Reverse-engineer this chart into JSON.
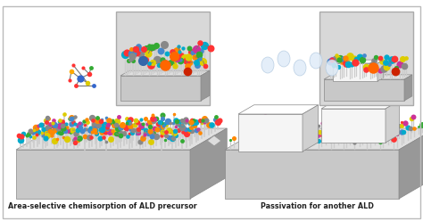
{
  "label_left": "Area-selective chemisorption of ALD precursor",
  "label_right": "Passivation for another ALD",
  "bg_color": "#ffffff",
  "border_color": "#bbbbbb",
  "fig_width": 4.74,
  "fig_height": 2.48,
  "dpi": 100,
  "label_fontsize": 5.8,
  "face_color": "#c8c8c8",
  "side_color": "#989898",
  "top_color": "#e0e0e0",
  "white_face": "#f5f5f5",
  "white_side": "#d0d0d0",
  "white_top": "#ffffff",
  "mol_colors": [
    "#ff3333",
    "#4488cc",
    "#ff8800",
    "#33aa33",
    "#cc3399",
    "#ddcc00",
    "#888888",
    "#00aacc"
  ],
  "atom_colors_large": [
    "#ff6600",
    "#3366cc",
    "#cc2200"
  ]
}
